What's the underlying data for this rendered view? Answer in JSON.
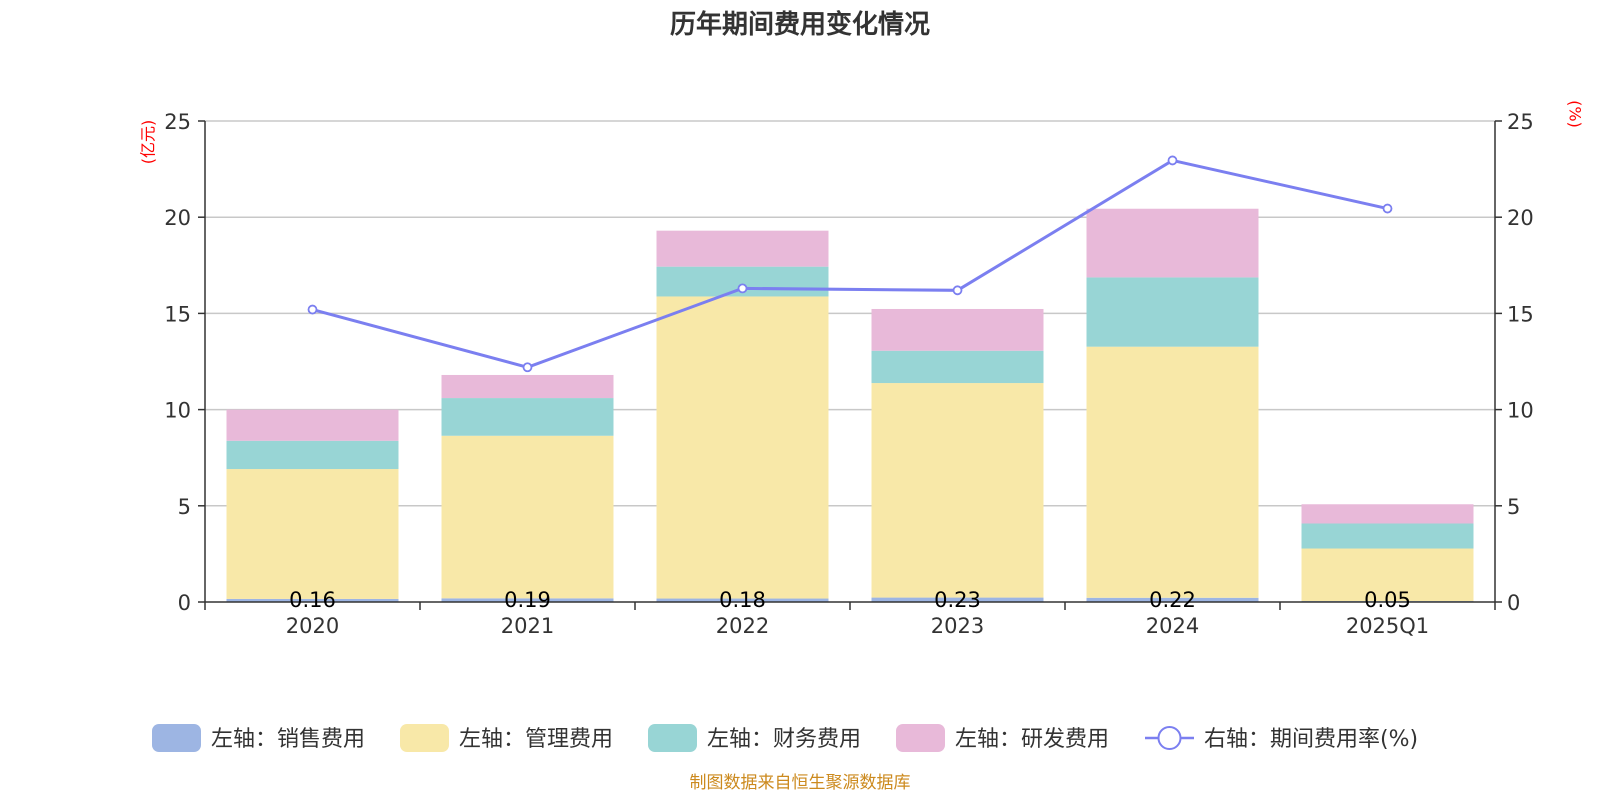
{
  "chart_data": {
    "type": "bar",
    "title": "历年期间费用变化情况",
    "left_unit": "(亿元)",
    "right_unit": "(%)",
    "categories": [
      "2020",
      "2021",
      "2022",
      "2023",
      "2024",
      "2025Q1"
    ],
    "y_left": {
      "min": 0,
      "max": 25,
      "ticks": [
        "0",
        "5",
        "10",
        "15",
        "20",
        "25"
      ]
    },
    "y_right": {
      "min": 0,
      "max": 25,
      "ticks": [
        "0",
        "5",
        "10",
        "15",
        "20",
        "25"
      ]
    },
    "series": [
      {
        "name": "左轴：销售费用",
        "type": "bar",
        "color": "#9db5e3",
        "values": [
          0.16,
          0.19,
          0.18,
          0.23,
          0.22,
          0.05
        ],
        "labels": [
          "0.16",
          "0.19",
          "0.18",
          "0.23",
          "0.22",
          "0.05"
        ]
      },
      {
        "name": "左轴：管理费用",
        "type": "bar",
        "color": "#f8e8a8",
        "values": [
          6.75,
          8.45,
          15.7,
          11.15,
          13.05,
          2.73
        ]
      },
      {
        "name": "左轴：财务费用",
        "type": "bar",
        "color": "#98d5d5",
        "values": [
          1.47,
          1.96,
          1.55,
          1.68,
          3.6,
          1.3
        ]
      },
      {
        "name": "左轴：研发费用",
        "type": "bar",
        "color": "#e8b9d9",
        "values": [
          1.62,
          1.2,
          1.87,
          2.17,
          3.57,
          1.0
        ]
      },
      {
        "name": "右轴：期间费用率(%)",
        "type": "line",
        "axis": "right",
        "color": "#7b7ff0",
        "values": [
          15.2,
          12.2,
          16.3,
          16.2,
          22.95,
          20.45
        ]
      }
    ],
    "source": "制图数据来自恒生聚源数据库"
  }
}
